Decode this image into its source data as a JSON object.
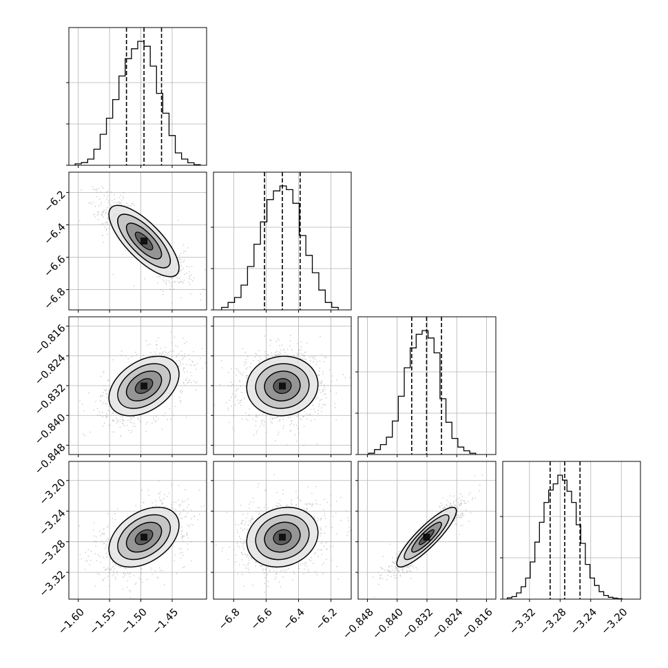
{
  "chart_data": {
    "type": "corner",
    "parameters": [
      {
        "range": [
          -1.615,
          -1.395
        ],
        "ticks": [
          -1.6,
          -1.55,
          -1.5,
          -1.45
        ],
        "tick_labels": [
          "−1.60",
          "−1.55",
          "−1.50",
          "−1.45"
        ],
        "quantiles": [
          -1.523,
          -1.495,
          -1.467
        ],
        "hist_edges": [
          -1.605,
          -1.595,
          -1.585,
          -1.575,
          -1.565,
          -1.555,
          -1.545,
          -1.535,
          -1.525,
          -1.515,
          -1.505,
          -1.495,
          -1.485,
          -1.475,
          -1.465,
          -1.455,
          -1.445,
          -1.435,
          -1.425,
          -1.415,
          -1.405
        ],
        "hist_values": [
          0.012,
          0.022,
          0.05,
          0.13,
          0.25,
          0.38,
          0.53,
          0.72,
          0.86,
          0.94,
          1.0,
          0.96,
          0.8,
          0.58,
          0.42,
          0.24,
          0.1,
          0.05,
          0.02,
          0.005
        ]
      },
      {
        "range": [
          -6.925,
          -6.075
        ],
        "ticks": [
          -6.8,
          -6.6,
          -6.4,
          -6.2
        ],
        "tick_labels": [
          "−6.8",
          "−6.6",
          "−6.4",
          "−6.2"
        ],
        "quantiles": [
          -6.61,
          -6.5,
          -6.39
        ],
        "hist_edges": [
          -6.875,
          -6.835,
          -6.795,
          -6.755,
          -6.715,
          -6.675,
          -6.635,
          -6.595,
          -6.555,
          -6.515,
          -6.475,
          -6.435,
          -6.395,
          -6.355,
          -6.315,
          -6.275,
          -6.235,
          -6.195,
          -6.155
        ],
        "hist_values": [
          0.02,
          0.06,
          0.1,
          0.2,
          0.35,
          0.53,
          0.71,
          0.89,
          0.96,
          1.0,
          0.97,
          0.86,
          0.6,
          0.44,
          0.3,
          0.16,
          0.06,
          0.02
        ]
      },
      {
        "range": [
          -0.8505,
          -0.8135
        ],
        "ticks": [
          -0.848,
          -0.84,
          -0.832,
          -0.824,
          -0.816
        ],
        "tick_labels": [
          "−0.848",
          "−0.840",
          "−0.832",
          "−0.824",
          "−0.816"
        ],
        "quantiles": [
          -0.8361,
          -0.8321,
          -0.8281
        ],
        "hist_edges": [
          -0.8477,
          -0.8461,
          -0.8445,
          -0.8429,
          -0.8413,
          -0.8397,
          -0.8381,
          -0.8365,
          -0.8349,
          -0.8333,
          -0.8317,
          -0.8301,
          -0.8285,
          -0.8269,
          -0.8253,
          -0.8237,
          -0.8221,
          -0.8205,
          -0.8189
        ],
        "hist_values": [
          0.01,
          0.04,
          0.08,
          0.14,
          0.27,
          0.47,
          0.7,
          0.86,
          0.97,
          1.0,
          0.94,
          0.82,
          0.45,
          0.26,
          0.13,
          0.06,
          0.03,
          0.01
        ]
      },
      {
        "range": [
          -3.355,
          -3.175
        ],
        "ticks": [
          -3.32,
          -3.28,
          -3.24,
          -3.2
        ],
        "tick_labels": [
          "−3.32",
          "−3.28",
          "−3.24",
          "−3.20"
        ],
        "quantiles": [
          -3.293,
          -3.274,
          -3.254
        ],
        "hist_edges": [
          -3.349,
          -3.343,
          -3.337,
          -3.331,
          -3.325,
          -3.319,
          -3.313,
          -3.307,
          -3.301,
          -3.295,
          -3.289,
          -3.283,
          -3.277,
          -3.271,
          -3.265,
          -3.259,
          -3.253,
          -3.247,
          -3.241,
          -3.235,
          -3.229,
          -3.223,
          -3.217,
          -3.211,
          -3.205,
          -3.199
        ],
        "hist_values": [
          0.01,
          0.02,
          0.05,
          0.1,
          0.17,
          0.3,
          0.46,
          0.62,
          0.78,
          0.88,
          0.93,
          1.0,
          0.96,
          0.87,
          0.78,
          0.6,
          0.45,
          0.28,
          0.17,
          0.11,
          0.06,
          0.03,
          0.015,
          0.008,
          0.003
        ]
      }
    ],
    "correlations": [
      [
        1.0,
        -0.75,
        0.4,
        0.4
      ],
      [
        -0.75,
        1.0,
        0.05,
        0.15
      ],
      [
        0.4,
        0.05,
        1.0,
        0.88
      ],
      [
        0.4,
        0.15,
        0.88,
        1.0
      ]
    ],
    "contour_levels_sigma": [
      0.5,
      1.0,
      1.5,
      2.0
    ],
    "grid": true,
    "axis_labels": []
  }
}
